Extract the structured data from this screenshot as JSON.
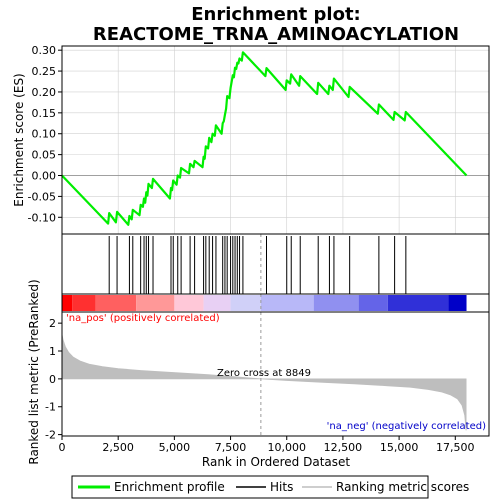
{
  "chart_data": {
    "type": "line",
    "title_line1": "Enrichment plot:",
    "title_line2": "REACTOME_TRNA_AMINOACYLATION",
    "xlabel": "Rank in Ordered Dataset",
    "ylabel_top": "Enrichment score (ES)",
    "ylabel_bottom": "Ranked list metric (PreRanked)",
    "xlim": [
      0,
      19000
    ],
    "x_ticks": [
      0,
      2500,
      5000,
      7500,
      10000,
      12500,
      15000,
      17500
    ],
    "x_tick_labels": [
      "0",
      "2,500",
      "5,000",
      "7,500",
      "10,000",
      "12,500",
      "15,000",
      "17,500"
    ],
    "es_ylim": [
      -0.14,
      0.31
    ],
    "es_ticks": [
      -0.1,
      -0.05,
      0.0,
      0.05,
      0.1,
      0.15,
      0.2,
      0.25,
      0.3
    ],
    "es_tick_labels": [
      "-0.10",
      "-0.05",
      "0.00",
      "0.05",
      "0.10",
      "0.15",
      "0.20",
      "0.25",
      "0.30"
    ],
    "metric_ylim": [
      -2.05,
      2.4
    ],
    "metric_ticks": [
      -2,
      -1,
      0,
      1,
      2
    ],
    "metric_tick_labels": [
      "-2",
      "-1",
      "0",
      "1",
      "2"
    ],
    "hits": [
      2100,
      2450,
      3000,
      3150,
      3500,
      3650,
      3750,
      3850,
      4050,
      4850,
      4950,
      5150,
      5300,
      5700,
      5900,
      6300,
      6400,
      6550,
      6700,
      6850,
      7150,
      7250,
      7350,
      7500,
      7600,
      7700,
      7800,
      7900,
      8050,
      9100,
      10000,
      10200,
      10600,
      11400,
      11900,
      12100,
      12800,
      14100,
      14800,
      15300
    ],
    "es_points": [
      [
        0,
        0.0
      ],
      [
        2050,
        -0.115
      ],
      [
        2100,
        -0.09
      ],
      [
        2400,
        -0.112
      ],
      [
        2450,
        -0.087
      ],
      [
        2950,
        -0.118
      ],
      [
        3000,
        -0.097
      ],
      [
        3100,
        -0.105
      ],
      [
        3150,
        -0.082
      ],
      [
        3450,
        -0.095
      ],
      [
        3500,
        -0.07
      ],
      [
        3600,
        -0.075
      ],
      [
        3650,
        -0.055
      ],
      [
        3700,
        -0.065
      ],
      [
        3750,
        -0.04
      ],
      [
        3800,
        -0.048
      ],
      [
        3850,
        -0.02
      ],
      [
        4000,
        -0.03
      ],
      [
        4050,
        -0.008
      ],
      [
        4800,
        -0.055
      ],
      [
        4850,
        -0.03
      ],
      [
        4900,
        -0.035
      ],
      [
        4950,
        -0.012
      ],
      [
        5100,
        -0.022
      ],
      [
        5150,
        0.0
      ],
      [
        5250,
        -0.005
      ],
      [
        5300,
        0.018
      ],
      [
        5650,
        0.005
      ],
      [
        5700,
        0.028
      ],
      [
        5850,
        0.02
      ],
      [
        5900,
        0.035
      ],
      [
        6250,
        0.02
      ],
      [
        6300,
        0.045
      ],
      [
        6350,
        0.04
      ],
      [
        6400,
        0.07
      ],
      [
        6500,
        0.065
      ],
      [
        6550,
        0.09
      ],
      [
        6650,
        0.08
      ],
      [
        6700,
        0.1
      ],
      [
        6800,
        0.095
      ],
      [
        6850,
        0.12
      ],
      [
        7100,
        0.1
      ],
      [
        7150,
        0.125
      ],
      [
        7200,
        0.13
      ],
      [
        7250,
        0.145
      ],
      [
        7300,
        0.16
      ],
      [
        7350,
        0.19
      ],
      [
        7450,
        0.185
      ],
      [
        7500,
        0.21
      ],
      [
        7550,
        0.225
      ],
      [
        7600,
        0.24
      ],
      [
        7650,
        0.235
      ],
      [
        7700,
        0.258
      ],
      [
        7750,
        0.255
      ],
      [
        7800,
        0.27
      ],
      [
        7850,
        0.268
      ],
      [
        7900,
        0.28
      ],
      [
        8000,
        0.275
      ],
      [
        8050,
        0.295
      ],
      [
        9050,
        0.238
      ],
      [
        9100,
        0.257
      ],
      [
        9950,
        0.205
      ],
      [
        10000,
        0.228
      ],
      [
        10150,
        0.22
      ],
      [
        10200,
        0.242
      ],
      [
        10550,
        0.215
      ],
      [
        10600,
        0.238
      ],
      [
        11350,
        0.195
      ],
      [
        11400,
        0.222
      ],
      [
        11850,
        0.195
      ],
      [
        11900,
        0.215
      ],
      [
        12050,
        0.205
      ],
      [
        12100,
        0.232
      ],
      [
        12750,
        0.188
      ],
      [
        12800,
        0.212
      ],
      [
        14050,
        0.148
      ],
      [
        14100,
        0.17
      ],
      [
        14750,
        0.133
      ],
      [
        14800,
        0.152
      ],
      [
        15250,
        0.132
      ],
      [
        15300,
        0.152
      ],
      [
        18000,
        0.0
      ]
    ],
    "metric_points": [
      [
        0,
        1.6
      ],
      [
        50,
        1.4
      ],
      [
        150,
        1.15
      ],
      [
        300,
        0.95
      ],
      [
        500,
        0.78
      ],
      [
        800,
        0.64
      ],
      [
        1200,
        0.53
      ],
      [
        1800,
        0.44
      ],
      [
        2500,
        0.37
      ],
      [
        3500,
        0.3
      ],
      [
        4500,
        0.25
      ],
      [
        5500,
        0.2
      ],
      [
        6500,
        0.15
      ],
      [
        7500,
        0.09
      ],
      [
        8849,
        0.0
      ],
      [
        10000,
        -0.06
      ],
      [
        11500,
        -0.12
      ],
      [
        13000,
        -0.18
      ],
      [
        14500,
        -0.25
      ],
      [
        15500,
        -0.3
      ],
      [
        16300,
        -0.38
      ],
      [
        16900,
        -0.47
      ],
      [
        17300,
        -0.58
      ],
      [
        17600,
        -0.72
      ],
      [
        17800,
        -0.95
      ],
      [
        17920,
        -1.3
      ],
      [
        17980,
        -1.85
      ]
    ],
    "band_colors": [
      "#ff0000",
      "#ff3030",
      "#ff6060",
      "#ff9898",
      "#ffc8d8",
      "#e8d0f4",
      "#d0d0f8",
      "#b8b8f8",
      "#9090f0",
      "#6464e8",
      "#3030d8",
      "#0000c8"
    ],
    "band_bounds": [
      0,
      450,
      1500,
      3300,
      5000,
      6300,
      7500,
      8849,
      11200,
      13200,
      14500,
      17200,
      18000
    ],
    "zero_cross": 8849,
    "zero_cross_text": "Zero cross at 8849",
    "pos_text": "'na_pos' (positively correlated)",
    "neg_text": "'na_neg' (negatively correlated)",
    "legend": [
      "Enrichment profile",
      "Hits",
      "Ranking metric scores"
    ],
    "colors": {
      "es_line": "#00ee00",
      "hit": "#000000",
      "metric_fill": "#bebebe",
      "pos_text": "#ff0000",
      "neg_text": "#0000c8",
      "zero_line": "#9a9a9a",
      "grid": "#d0d0d0"
    }
  }
}
